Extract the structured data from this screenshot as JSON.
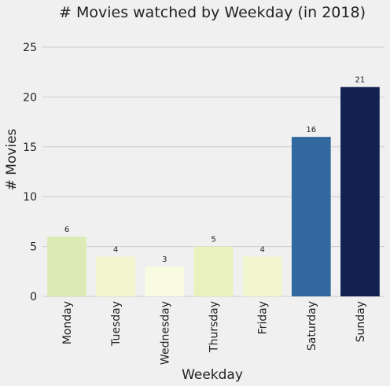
{
  "chart_data": {
    "type": "bar",
    "title": "# Movies watched by Weekday (in 2018)",
    "xlabel": "Weekday",
    "ylabel": "# Movies",
    "categories": [
      "Monday",
      "Tuesday",
      "Wednesday",
      "Thursday",
      "Friday",
      "Saturday",
      "Sunday"
    ],
    "values": [
      6,
      4,
      3,
      5,
      4,
      16,
      21
    ],
    "data_labels": [
      "6",
      "4",
      "3",
      "5",
      "4",
      "16",
      "21"
    ],
    "colors": [
      "#dcebb6",
      "#f1f6ce",
      "#f8fbe0",
      "#e9f2be",
      "#f1f6ce",
      "#31699e",
      "#122150"
    ],
    "ylim": [
      0,
      27
    ],
    "yticks": [
      0,
      5,
      10,
      15,
      20,
      25
    ],
    "ytick_labels": [
      "0",
      "5",
      "10",
      "15",
      "20",
      "25"
    ],
    "grid": true,
    "legend": "none"
  }
}
